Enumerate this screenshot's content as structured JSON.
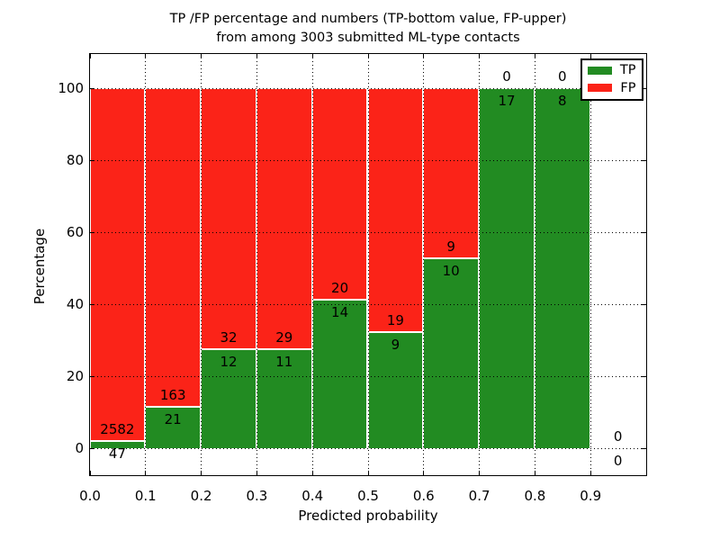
{
  "title": {
    "line1": "TP /FP percentage and numbers (TP-bottom value, FP-upper)",
    "line2": "from among 3003 submitted ML-type contacts"
  },
  "axes": {
    "xlabel": "Predicted probability",
    "ylabel": "Percentage"
  },
  "legend": {
    "items": [
      {
        "label": "TP",
        "color": "#228b22"
      },
      {
        "label": "FP",
        "color": "#fb2318"
      }
    ]
  },
  "colors": {
    "tp_green": "#228b22",
    "fp_red": "#fb2318",
    "grid": "#000000",
    "background": "#ffffff",
    "text": "#000000"
  },
  "chart_data": {
    "type": "bar",
    "subtype": "stacked-percentage",
    "title": "TP /FP percentage and numbers (TP-bottom value, FP-upper) from among 3003 submitted ML-type contacts",
    "xlabel": "Predicted probability",
    "ylabel": "Percentage",
    "total_contacts": 3003,
    "bin_width": 0.1,
    "bin_starts": [
      0.0,
      0.1,
      0.2,
      0.3,
      0.4,
      0.5,
      0.6,
      0.7,
      0.8,
      0.9
    ],
    "x_tick_labels": [
      "0.0",
      "0.1",
      "0.2",
      "0.3",
      "0.4",
      "0.5",
      "0.6",
      "0.7",
      "0.8",
      "0.9"
    ],
    "y_ticks": [
      0,
      20,
      40,
      60,
      80,
      100
    ],
    "xlim": [
      0.0,
      1.0
    ],
    "ylim": [
      -7.5,
      109.5
    ],
    "grid": true,
    "legend_position": "upper right",
    "series": [
      {
        "name": "TP",
        "color": "#228b22",
        "counts": [
          47,
          21,
          12,
          11,
          14,
          9,
          10,
          17,
          8,
          0
        ]
      },
      {
        "name": "FP",
        "color": "#fb2318",
        "counts": [
          2582,
          163,
          32,
          29,
          20,
          19,
          9,
          0,
          0,
          0
        ]
      }
    ],
    "tp_percent_of_bin": [
      1.8,
      11.4,
      27.3,
      27.5,
      41.2,
      32.1,
      52.6,
      100.0,
      100.0,
      null
    ],
    "note": "Green TP bar height = TP/(TP+FP)*100; red FP fills up to 100%. FP count printed above the TP/FP boundary, TP count printed below it. Last bin (0.9-1.0) has no bar."
  }
}
